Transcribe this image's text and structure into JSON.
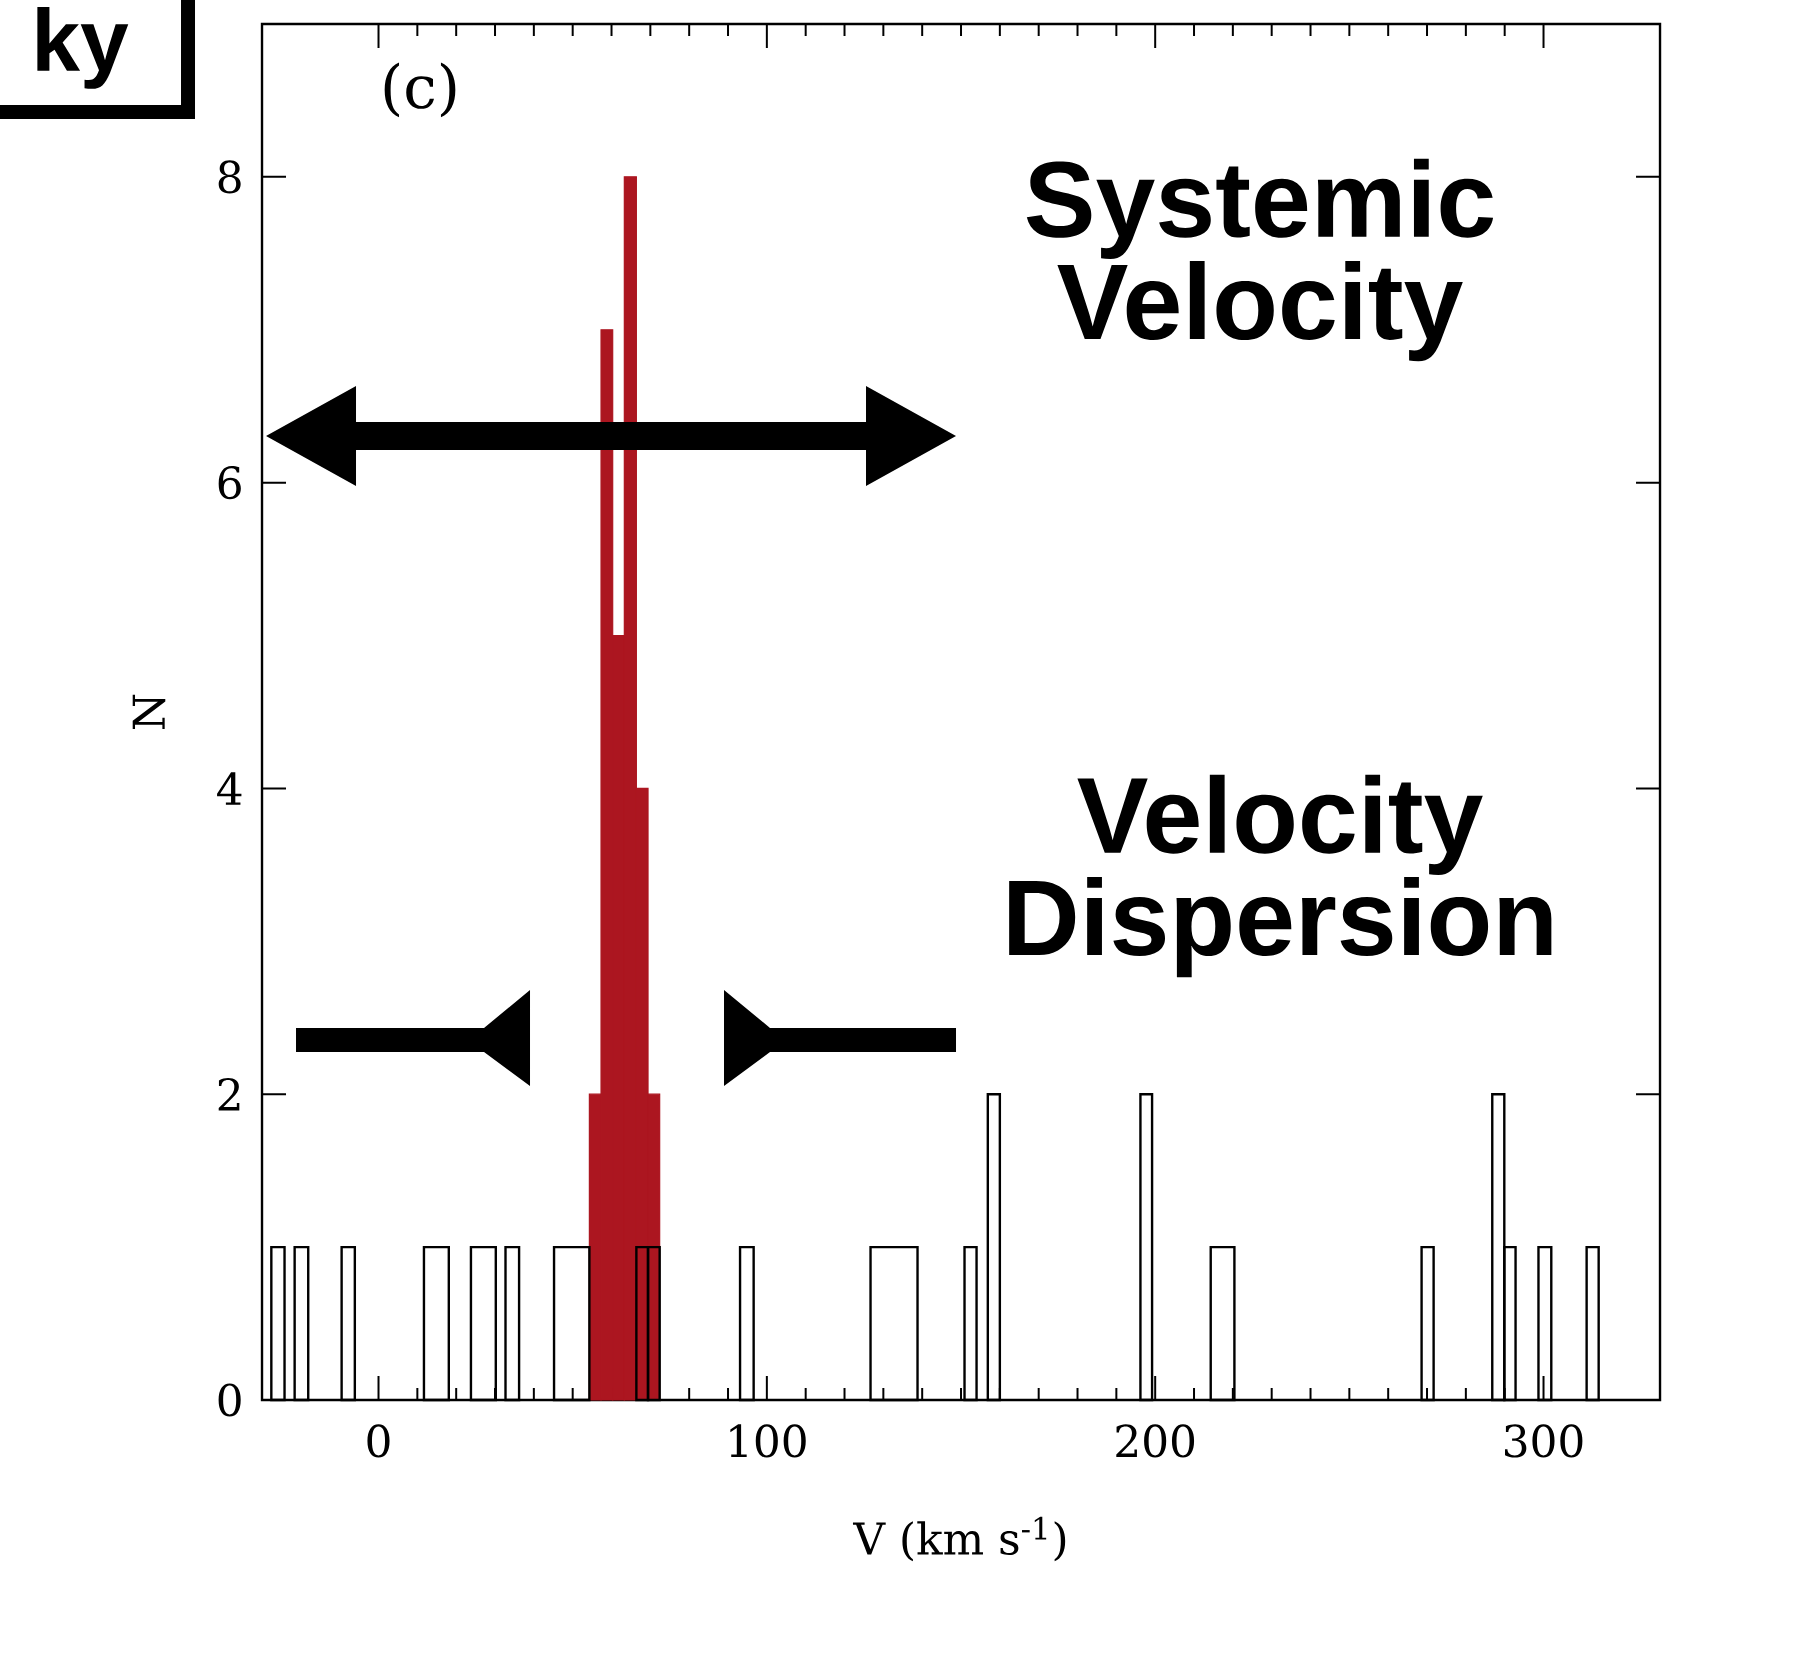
{
  "chart_data": {
    "type": "histogram",
    "xlabel": "V (km s$^{-1}$)",
    "ylabel": "N",
    "annotations": [
      "(c)",
      "Systemic Velocity",
      "Velocity Dispersion",
      "ky"
    ],
    "bins": [
      -27.6,
      -24.2,
      -21.6,
      -18.1,
      -9.5,
      -6.1,
      11.7,
      18.1,
      23.8,
      30.2,
      32.7,
      36.2,
      45.2,
      54.3,
      57.3,
      60.3,
      63.3,
      66.4,
      69.4,
      72.4,
      93.1,
      96.6,
      126.7,
      138.8,
      150.9,
      154.0,
      156.9,
      160.0,
      196.2,
      199.2,
      214.3,
      220.4,
      268.6,
      271.7,
      286.8,
      289.9,
      292.8,
      298.7,
      302.0,
      311.1,
      314.2
    ],
    "series": [
      {
        "color": "#ac1620",
        "values": [
          0,
          0,
          0,
          0,
          0,
          0,
          0,
          0,
          0,
          0,
          0,
          0,
          0,
          2,
          7,
          5,
          8,
          4,
          2,
          0,
          0,
          0,
          0,
          0,
          0,
          0,
          0,
          0,
          0,
          0,
          0,
          0,
          0,
          0,
          0,
          0,
          0,
          0,
          0,
          0
        ]
      },
      {
        "color": "#000000",
        "values": [
          1,
          0,
          1,
          0,
          1,
          0,
          1,
          0,
          1,
          0,
          1,
          0,
          1,
          0,
          0,
          0,
          0,
          1,
          1,
          0,
          1,
          0,
          1,
          0,
          1,
          0,
          2,
          0,
          2,
          0,
          1,
          0,
          1,
          0,
          2,
          1,
          0,
          1,
          0,
          1
        ]
      }
    ],
    "xlim": [
      -30,
      330
    ],
    "ylim": [
      0,
      9
    ],
    "xticks": [
      0,
      100,
      200,
      300
    ],
    "yticks": [
      0,
      2,
      4,
      6,
      8
    ]
  }
}
